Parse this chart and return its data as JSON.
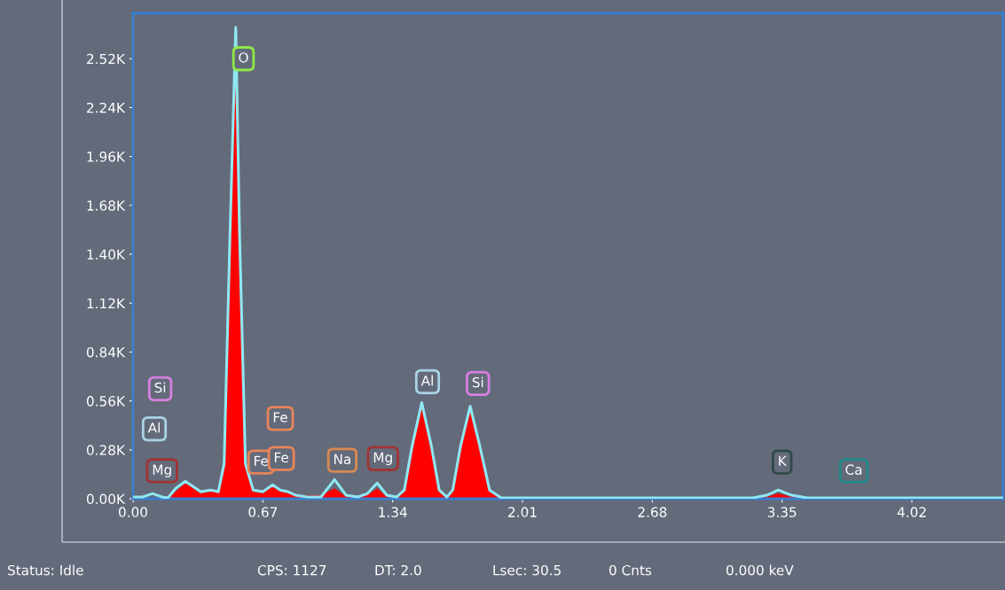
{
  "chart_data": {
    "type": "area",
    "x": [
      0.0,
      0.05,
      0.1,
      0.15,
      0.18,
      0.22,
      0.27,
      0.31,
      0.35,
      0.4,
      0.44,
      0.47,
      0.5,
      0.53,
      0.55,
      0.58,
      0.62,
      0.67,
      0.72,
      0.76,
      0.8,
      0.84,
      0.9,
      0.97,
      1.04,
      1.1,
      1.16,
      1.21,
      1.26,
      1.31,
      1.36,
      1.4,
      1.44,
      1.49,
      1.54,
      1.58,
      1.62,
      1.65,
      1.69,
      1.74,
      1.79,
      1.84,
      1.9,
      2.5,
      3.2,
      3.27,
      3.33,
      3.4,
      3.48,
      4.0,
      4.49
    ],
    "series": [
      {
        "color": "#ff0000",
        "values": [
          0.0,
          0.0,
          0.0,
          0.0,
          0.0,
          0.04,
          0.09,
          0.06,
          0.03,
          0.04,
          0.04,
          0.2,
          1.5,
          2.62,
          1.5,
          0.2,
          0.04,
          0.03,
          0.07,
          0.04,
          0.03,
          0.02,
          0.02,
          0.02,
          0.06,
          0.01,
          0.01,
          0.02,
          0.06,
          0.01,
          0.0,
          0.04,
          0.3,
          0.54,
          0.3,
          0.04,
          0.0,
          0.04,
          0.3,
          0.52,
          0.3,
          0.04,
          0.0,
          0.0,
          0.0,
          0.01,
          0.03,
          0.01,
          0.0,
          0.0,
          0.0
        ]
      },
      {
        "type": "line",
        "color": "#8fe8f2",
        "values": [
          0.01,
          0.01,
          0.03,
          0.01,
          0.005,
          0.06,
          0.1,
          0.07,
          0.04,
          0.05,
          0.04,
          0.2,
          1.5,
          2.7,
          1.5,
          0.2,
          0.05,
          0.04,
          0.08,
          0.05,
          0.04,
          0.02,
          0.01,
          0.01,
          0.11,
          0.02,
          0.01,
          0.03,
          0.09,
          0.02,
          0.01,
          0.05,
          0.3,
          0.55,
          0.3,
          0.05,
          0.01,
          0.05,
          0.3,
          0.53,
          0.3,
          0.05,
          0.005,
          0.005,
          0.005,
          0.02,
          0.05,
          0.02,
          0.005,
          0.005,
          0.005
        ]
      }
    ],
    "xlim": [
      0,
      4.49
    ],
    "ylim": [
      0,
      2.78
    ],
    "xticks": [
      {
        "value": 0,
        "label": "0.00"
      },
      0.67,
      1.34,
      2.01,
      2.68,
      3.35,
      4.02
    ],
    "yticks": [
      {
        "value": 0,
        "label": "0.00K"
      },
      {
        "value": 0.28,
        "label": "0.28K"
      },
      {
        "value": 0.56,
        "label": "0.56K"
      },
      {
        "value": 0.84,
        "label": "0.84K"
      },
      {
        "value": 1.12,
        "label": "1.12K"
      },
      {
        "value": 1.4,
        "label": "1.40K"
      },
      {
        "value": 1.68,
        "label": "1.68K"
      },
      {
        "value": 1.96,
        "label": "1.96K"
      },
      {
        "value": 2.24,
        "label": "2.24K"
      },
      {
        "value": 2.52,
        "label": "2.52K"
      }
    ],
    "annotations": [
      {
        "text": "O",
        "x": 0.57,
        "y": 2.52
      },
      {
        "text": "Si",
        "x": 0.14,
        "y": 0.63
      },
      {
        "text": "Al",
        "x": 0.11,
        "y": 0.4
      },
      {
        "text": "Mg",
        "x": 0.15,
        "y": 0.16
      },
      {
        "text": "Fe",
        "x": 0.76,
        "y": 0.46
      },
      {
        "text": "Fe",
        "x": 0.66,
        "y": 0.21
      },
      {
        "text": "Fe",
        "x": 0.765,
        "y": 0.23
      },
      {
        "text": "Na",
        "x": 1.08,
        "y": 0.22
      },
      {
        "text": "Mg",
        "x": 1.29,
        "y": 0.23
      },
      {
        "text": "Al",
        "x": 1.52,
        "y": 0.67
      },
      {
        "text": "Si",
        "x": 1.78,
        "y": 0.66
      },
      {
        "text": "K",
        "x": 3.35,
        "y": 0.21
      },
      {
        "text": "Ca",
        "x": 3.72,
        "y": 0.16
      },
      "Status: Idle",
      "CPS: 1127",
      "DT: 2.0",
      "Lsec: 30.5",
      "0 Cnts",
      "0.000 keV"
    ],
    "grid": false,
    "legend": false
  }
}
